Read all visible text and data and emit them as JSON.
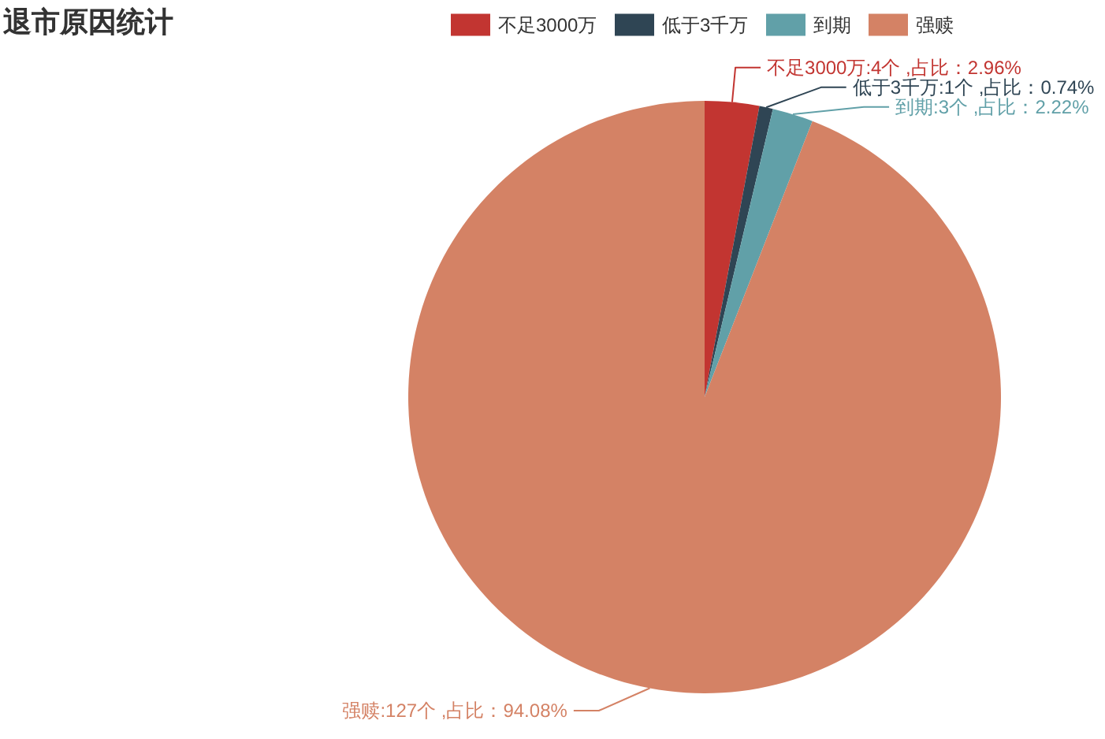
{
  "chart_data": {
    "type": "pie",
    "title": "退市原因统计",
    "categories": [
      "不足3000万",
      "低于3千万",
      "到期",
      "强赎"
    ],
    "values": [
      4,
      1,
      3,
      127
    ],
    "colors": [
      "#c23531",
      "#2f4554",
      "#61a0a8",
      "#d48265"
    ],
    "value_labels": [
      "不足3000万:4个 ,占比：2.96%",
      "低于3千万:1个 ,占比：0.74%",
      "到期:3个 ,占比：2.22%",
      "强赎:127个 ,占比：94.08%"
    ],
    "legend": "top"
  }
}
